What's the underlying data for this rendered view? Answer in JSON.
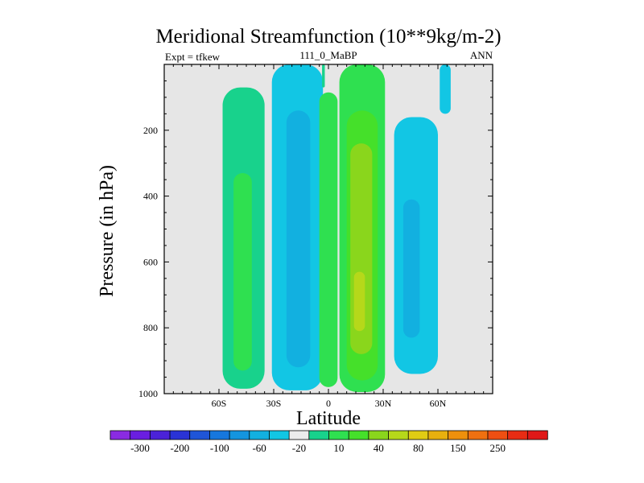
{
  "chart_data": {
    "type": "heatmap",
    "title": "Meridional Streamfunction (10**9kg/m-2)",
    "subtitle_left": "Expt = tfkew",
    "subtitle_center": "111_0_MaBP",
    "subtitle_right": "ANN",
    "xlabel": "Latitude",
    "ylabel": "Pressure (in hPa)",
    "xlim": [
      -90,
      90
    ],
    "ylim": [
      1000,
      0
    ],
    "x_tick_labels": [
      "60S",
      "30S",
      "0",
      "30N",
      "60N"
    ],
    "x_tick_values": [
      -60,
      -30,
      0,
      30,
      60
    ],
    "y_tick_labels": [
      "200",
      "400",
      "600",
      "800",
      "1000"
    ],
    "y_tick_values": [
      200,
      400,
      600,
      800,
      1000
    ],
    "background_color": "#e6e6e6",
    "colorbar": {
      "labels": [
        "-300",
        "-200",
        "-100",
        "-60",
        "-20",
        "10",
        "40",
        "80",
        "150",
        "250"
      ],
      "colors": [
        "#8a2be2",
        "#6a1ee0",
        "#4b22d8",
        "#2a33d6",
        "#1f55d8",
        "#1677de",
        "#1495df",
        "#12b0e0",
        "#12c6e4",
        "#ececec",
        "#18d28c",
        "#2fe050",
        "#45e02a",
        "#8ad61c",
        "#b6d81a",
        "#e0cc14",
        "#e8b00e",
        "#ee900c",
        "#f07010",
        "#ee4f12",
        "#e82c14",
        "#e01818"
      ]
    },
    "cells": [
      {
        "name": "south-outer-cell",
        "level": 10,
        "lat": [
          -58,
          -35
        ],
        "p": [
          70,
          985
        ]
      },
      {
        "name": "south-outer-cell-core",
        "level": 11,
        "lat": [
          -52,
          -42
        ],
        "p": [
          330,
          930
        ]
      },
      {
        "name": "south-hadley-cell",
        "level": 8,
        "lat": [
          -31,
          -3
        ],
        "p": [
          0,
          990
        ]
      },
      {
        "name": "south-hadley-cell-core",
        "level": 7,
        "lat": [
          -23,
          -10
        ],
        "p": [
          140,
          920
        ]
      },
      {
        "name": "equatorial-cell",
        "level": 11,
        "lat": [
          -5,
          5
        ],
        "p": [
          85,
          980
        ]
      },
      {
        "name": "north-hadley-cell",
        "level": 11,
        "lat": [
          6,
          31
        ],
        "p": [
          0,
          995
        ]
      },
      {
        "name": "north-hadley-cell-ring",
        "level": 12,
        "lat": [
          10,
          27
        ],
        "p": [
          140,
          960
        ]
      },
      {
        "name": "north-hadley-cell-core",
        "level": 13,
        "lat": [
          12,
          24
        ],
        "p": [
          240,
          880
        ]
      },
      {
        "name": "north-hadley-cell-center",
        "level": 14,
        "lat": [
          14,
          20
        ],
        "p": [
          630,
          810
        ]
      },
      {
        "name": "north-outer-cell",
        "level": 8,
        "lat": [
          36,
          60
        ],
        "p": [
          160,
          940
        ]
      },
      {
        "name": "north-outer-cell-core",
        "level": 7,
        "lat": [
          41,
          50
        ],
        "p": [
          410,
          830
        ]
      },
      {
        "name": "polar-streak",
        "level": 8,
        "lat": [
          61,
          67
        ],
        "p": [
          0,
          150
        ]
      },
      {
        "name": "equator-streak",
        "level": 10,
        "lat": [
          -3.5,
          -2.0
        ],
        "p": [
          0,
          70
        ]
      }
    ]
  }
}
